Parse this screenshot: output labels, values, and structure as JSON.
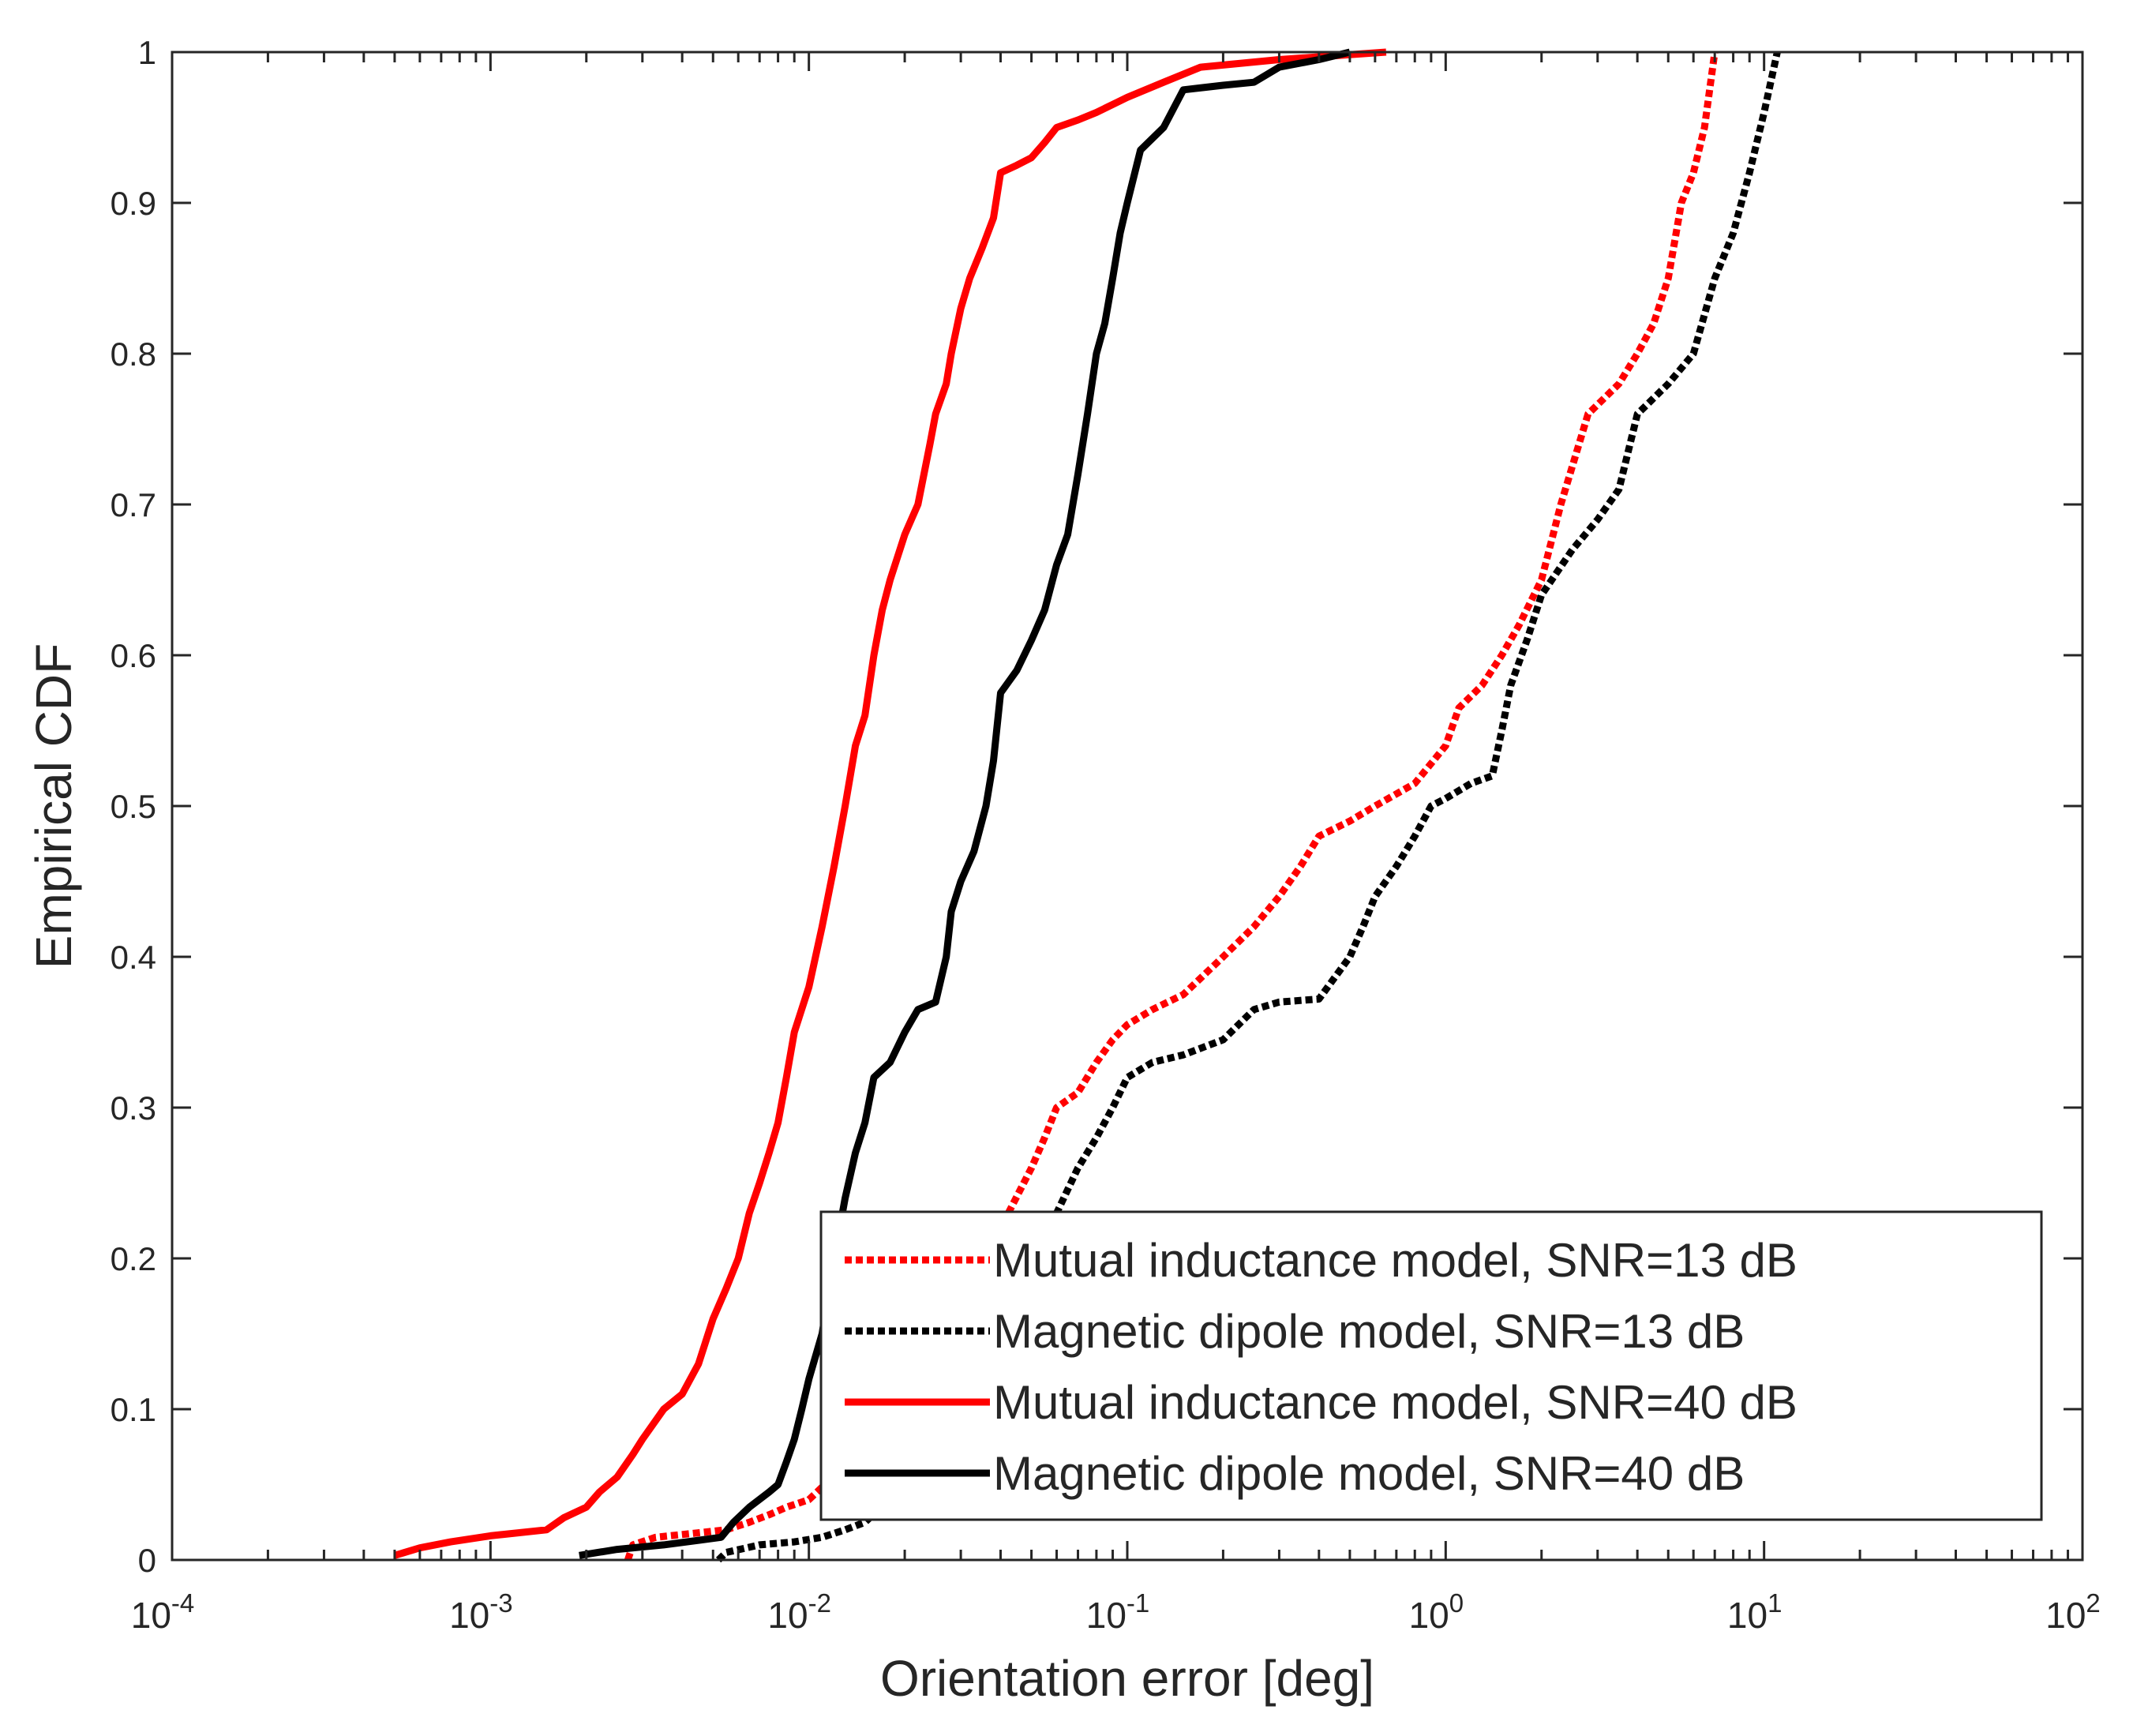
{
  "chart_data": {
    "type": "line",
    "title": "",
    "xlabel": "Orientation error [deg]",
    "ylabel": "Empirical CDF",
    "xscale": "log",
    "xlim": [
      0.0001,
      100
    ],
    "ylim": [
      0,
      1
    ],
    "x_tick_labels": [
      {
        "base": "10",
        "exp": "-4",
        "value": 0.0001
      },
      {
        "base": "10",
        "exp": "-3",
        "value": 0.001
      },
      {
        "base": "10",
        "exp": "-2",
        "value": 0.01
      },
      {
        "base": "10",
        "exp": "-1",
        "value": 0.1
      },
      {
        "base": "10",
        "exp": "0",
        "value": 1
      },
      {
        "base": "10",
        "exp": "1",
        "value": 10
      },
      {
        "base": "10",
        "exp": "2",
        "value": 100
      }
    ],
    "y_ticks": [
      0,
      0.1,
      0.2,
      0.3,
      0.4,
      0.5,
      0.6,
      0.7,
      0.8,
      0.9,
      1
    ],
    "y_tick_labels": [
      "0",
      "0.1",
      "0.2",
      "0.3",
      "0.4",
      "0.5",
      "0.6",
      "0.7",
      "0.8",
      "0.9",
      "1"
    ],
    "grid": false,
    "legend_position": "bottom-right",
    "series": [
      {
        "name": "Mutual inductance model, SNR=13 dB",
        "color": "#ff0000",
        "dash": "dotted",
        "points": [
          [
            0.0027,
            0
          ],
          [
            0.0028,
            0.01
          ],
          [
            0.0033,
            0.015
          ],
          [
            0.0045,
            0.018
          ],
          [
            0.0055,
            0.02
          ],
          [
            0.0065,
            0.025
          ],
          [
            0.0075,
            0.03
          ],
          [
            0.0085,
            0.035
          ],
          [
            0.01,
            0.04
          ],
          [
            0.02,
            0.1
          ],
          [
            0.04,
            0.22
          ],
          [
            0.05,
            0.26
          ],
          [
            0.055,
            0.28
          ],
          [
            0.06,
            0.3
          ],
          [
            0.07,
            0.31
          ],
          [
            0.08,
            0.33
          ],
          [
            0.09,
            0.345
          ],
          [
            0.1,
            0.355
          ],
          [
            0.12,
            0.365
          ],
          [
            0.15,
            0.375
          ],
          [
            0.2,
            0.4
          ],
          [
            0.25,
            0.42
          ],
          [
            0.3,
            0.44
          ],
          [
            0.35,
            0.46
          ],
          [
            0.4,
            0.48
          ],
          [
            0.5,
            0.49
          ],
          [
            0.6,
            0.5
          ],
          [
            0.8,
            0.515
          ],
          [
            1.0,
            0.54
          ],
          [
            1.1,
            0.565
          ],
          [
            1.3,
            0.58
          ],
          [
            1.5,
            0.6
          ],
          [
            1.7,
            0.62
          ],
          [
            2.0,
            0.65
          ],
          [
            2.3,
            0.7
          ],
          [
            2.8,
            0.76
          ],
          [
            3.5,
            0.78
          ],
          [
            4.0,
            0.8
          ],
          [
            4.5,
            0.82
          ],
          [
            5.0,
            0.85
          ],
          [
            5.5,
            0.9
          ],
          [
            6.0,
            0.92
          ],
          [
            6.5,
            0.95
          ],
          [
            7.0,
            1.0
          ]
        ]
      },
      {
        "name": "Magnetic dipole model, SNR=13 dB",
        "color": "#000000",
        "dash": "dotted",
        "points": [
          [
            0.0052,
            0
          ],
          [
            0.0055,
            0.005
          ],
          [
            0.007,
            0.01
          ],
          [
            0.009,
            0.012
          ],
          [
            0.011,
            0.015
          ],
          [
            0.013,
            0.02
          ],
          [
            0.015,
            0.025
          ],
          [
            0.02,
            0.05
          ],
          [
            0.03,
            0.1
          ],
          [
            0.045,
            0.18
          ],
          [
            0.06,
            0.23
          ],
          [
            0.07,
            0.26
          ],
          [
            0.08,
            0.28
          ],
          [
            0.09,
            0.3
          ],
          [
            0.1,
            0.32
          ],
          [
            0.12,
            0.33
          ],
          [
            0.15,
            0.335
          ],
          [
            0.2,
            0.345
          ],
          [
            0.25,
            0.365
          ],
          [
            0.3,
            0.37
          ],
          [
            0.4,
            0.372
          ],
          [
            0.5,
            0.4
          ],
          [
            0.55,
            0.42
          ],
          [
            0.6,
            0.44
          ],
          [
            0.7,
            0.46
          ],
          [
            0.8,
            0.48
          ],
          [
            0.9,
            0.5
          ],
          [
            1.0,
            0.505
          ],
          [
            1.2,
            0.515
          ],
          [
            1.4,
            0.52
          ],
          [
            1.5,
            0.55
          ],
          [
            1.6,
            0.58
          ],
          [
            1.8,
            0.61
          ],
          [
            2.0,
            0.64
          ],
          [
            2.5,
            0.67
          ],
          [
            3.0,
            0.69
          ],
          [
            3.5,
            0.71
          ],
          [
            4.0,
            0.76
          ],
          [
            5.0,
            0.78
          ],
          [
            6.0,
            0.8
          ],
          [
            7.0,
            0.85
          ],
          [
            8.0,
            0.88
          ],
          [
            9.0,
            0.92
          ],
          [
            10.0,
            0.96
          ],
          [
            11.0,
            1.0
          ]
        ]
      },
      {
        "name": "Mutual inductance model, SNR=40 dB",
        "color": "#ff0000",
        "dash": "solid",
        "points": [
          [
            0.0005,
            0.003
          ],
          [
            0.0006,
            0.008
          ],
          [
            0.00075,
            0.012
          ],
          [
            0.001,
            0.016
          ],
          [
            0.0015,
            0.02
          ],
          [
            0.0017,
            0.028
          ],
          [
            0.002,
            0.035
          ],
          [
            0.0022,
            0.045
          ],
          [
            0.0025,
            0.055
          ],
          [
            0.0028,
            0.07
          ],
          [
            0.003,
            0.08
          ],
          [
            0.0035,
            0.1
          ],
          [
            0.004,
            0.11
          ],
          [
            0.0045,
            0.13
          ],
          [
            0.005,
            0.16
          ],
          [
            0.0055,
            0.18
          ],
          [
            0.006,
            0.2
          ],
          [
            0.0065,
            0.23
          ],
          [
            0.007,
            0.25
          ],
          [
            0.0075,
            0.27
          ],
          [
            0.008,
            0.29
          ],
          [
            0.0085,
            0.32
          ],
          [
            0.009,
            0.35
          ],
          [
            0.01,
            0.38
          ],
          [
            0.011,
            0.42
          ],
          [
            0.012,
            0.46
          ],
          [
            0.013,
            0.5
          ],
          [
            0.014,
            0.54
          ],
          [
            0.015,
            0.56
          ],
          [
            0.016,
            0.6
          ],
          [
            0.017,
            0.63
          ],
          [
            0.018,
            0.65
          ],
          [
            0.02,
            0.68
          ],
          [
            0.022,
            0.7
          ],
          [
            0.024,
            0.74
          ],
          [
            0.025,
            0.76
          ],
          [
            0.027,
            0.78
          ],
          [
            0.028,
            0.8
          ],
          [
            0.03,
            0.83
          ],
          [
            0.032,
            0.85
          ],
          [
            0.035,
            0.87
          ],
          [
            0.038,
            0.89
          ],
          [
            0.04,
            0.92
          ],
          [
            0.045,
            0.925
          ],
          [
            0.05,
            0.93
          ],
          [
            0.055,
            0.94
          ],
          [
            0.06,
            0.95
          ],
          [
            0.07,
            0.955
          ],
          [
            0.08,
            0.96
          ],
          [
            0.1,
            0.97
          ],
          [
            0.13,
            0.98
          ],
          [
            0.17,
            0.99
          ],
          [
            0.3,
            0.995
          ],
          [
            0.65,
            1.0
          ]
        ]
      },
      {
        "name": "Magnetic dipole model, SNR=40 dB",
        "color": "#000000",
        "dash": "solid",
        "points": [
          [
            0.0019,
            0.003
          ],
          [
            0.0025,
            0.007
          ],
          [
            0.0035,
            0.01
          ],
          [
            0.0053,
            0.015
          ],
          [
            0.0058,
            0.025
          ],
          [
            0.0065,
            0.035
          ],
          [
            0.0075,
            0.045
          ],
          [
            0.008,
            0.05
          ],
          [
            0.0085,
            0.065
          ],
          [
            0.009,
            0.08
          ],
          [
            0.0095,
            0.1
          ],
          [
            0.01,
            0.12
          ],
          [
            0.011,
            0.15
          ],
          [
            0.012,
            0.2
          ],
          [
            0.013,
            0.24
          ],
          [
            0.014,
            0.27
          ],
          [
            0.015,
            0.29
          ],
          [
            0.016,
            0.32
          ],
          [
            0.018,
            0.33
          ],
          [
            0.02,
            0.35
          ],
          [
            0.022,
            0.365
          ],
          [
            0.025,
            0.37
          ],
          [
            0.027,
            0.4
          ],
          [
            0.028,
            0.43
          ],
          [
            0.03,
            0.45
          ],
          [
            0.033,
            0.47
          ],
          [
            0.036,
            0.5
          ],
          [
            0.038,
            0.53
          ],
          [
            0.04,
            0.575
          ],
          [
            0.045,
            0.59
          ],
          [
            0.05,
            0.61
          ],
          [
            0.055,
            0.63
          ],
          [
            0.06,
            0.66
          ],
          [
            0.065,
            0.68
          ],
          [
            0.07,
            0.72
          ],
          [
            0.075,
            0.76
          ],
          [
            0.08,
            0.8
          ],
          [
            0.085,
            0.82
          ],
          [
            0.09,
            0.85
          ],
          [
            0.095,
            0.88
          ],
          [
            0.1,
            0.9
          ],
          [
            0.11,
            0.935
          ],
          [
            0.13,
            0.95
          ],
          [
            0.15,
            0.975
          ],
          [
            0.2,
            0.978
          ],
          [
            0.25,
            0.98
          ],
          [
            0.3,
            0.99
          ],
          [
            0.4,
            0.995
          ],
          [
            0.5,
            1.0
          ]
        ]
      }
    ]
  }
}
